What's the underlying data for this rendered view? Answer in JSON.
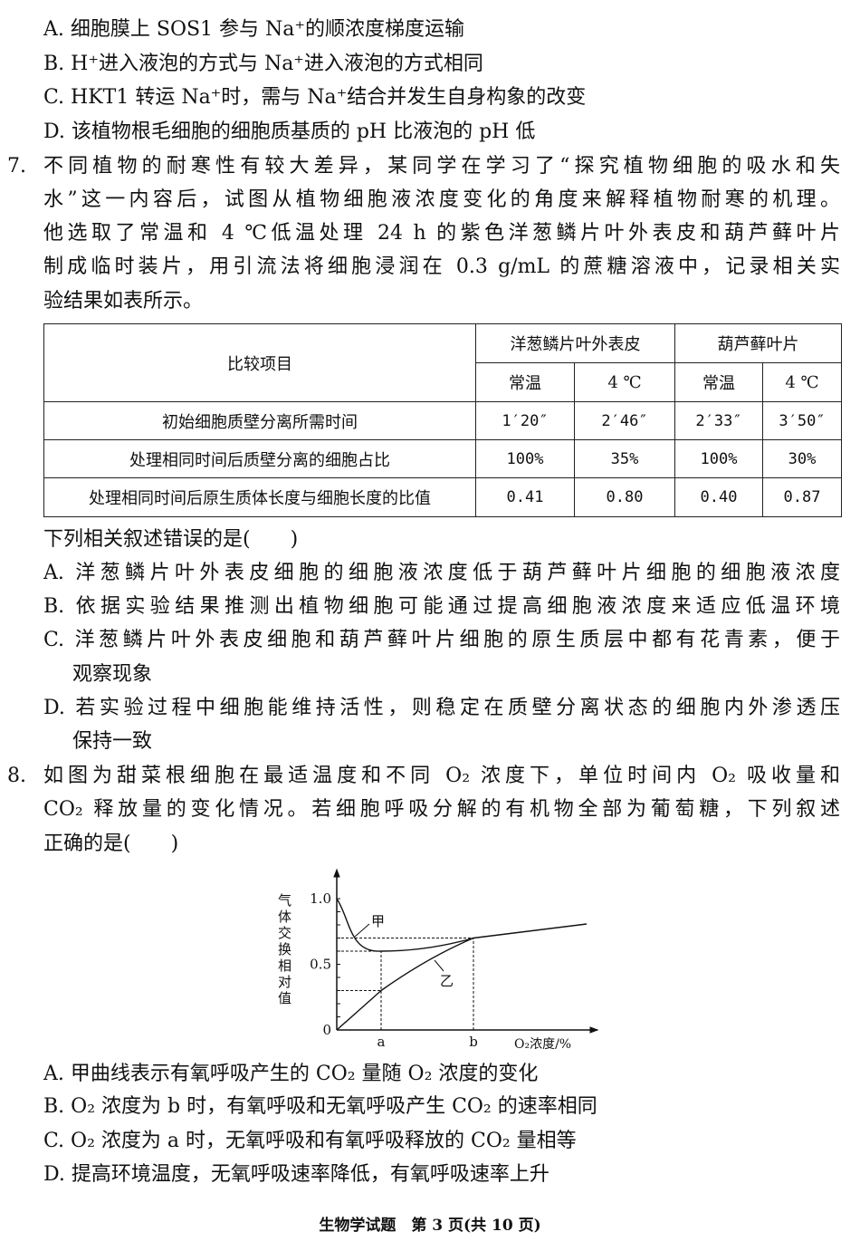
{
  "q6_options": [
    "A. 细胞膜上 SOS1 参与 Na⁺的顺浓度梯度运输",
    "B. H⁺进入液泡的方式与 Na⁺进入液泡的方式相同",
    "C. HKT1 转运 Na⁺时，需与 Na⁺结合并发生自身构象的改变",
    "D. 该植物根毛细胞的细胞质基质的 pH 比液泡的 pH 低"
  ],
  "q7": {
    "number": "7.",
    "stem": [
      "不同植物的耐寒性有较大差异，某同学在学习了“探究植物细胞的吸水和失",
      "水”这一内容后，试图从植物细胞液浓度变化的角度来解释植物耐寒的机理。",
      "他选取了常温和 4 ℃低温处理 24 h 的紫色洋葱鳞片叶外表皮和葫芦藓叶片",
      "制成临时装片，用引流法将细胞浸润在 0.3 g/mL 的蔗糖溶液中，记录相关实",
      "验结果如表所示。"
    ],
    "table": {
      "corner": "比较项目",
      "groups": [
        "洋葱鳞片叶外表皮",
        "葫芦藓叶片"
      ],
      "subheaders": [
        "常温",
        "4 ℃",
        "常温",
        "4 ℃"
      ],
      "rows": [
        {
          "label": "初始细胞质壁分离所需时间",
          "values": [
            "1′20″",
            "2′46″",
            "2′33″",
            "3′50″"
          ]
        },
        {
          "label": "处理相同时间后质壁分离的细胞占比",
          "values": [
            "100%",
            "35%",
            "100%",
            "30%"
          ]
        },
        {
          "label": "处理相同时间后原生质体长度与细胞长度的比值",
          "values": [
            "0.41",
            "0.80",
            "0.40",
            "0.87"
          ]
        }
      ]
    },
    "prompt": "下列相关叙述错误的是(　　)",
    "options": {
      "A": "A. 洋葱鳞片叶外表皮细胞的细胞液浓度低于葫芦藓叶片细胞的细胞液浓度",
      "B": "B. 依据实验结果推测出植物细胞可能通过提高细胞液浓度来适应低温环境",
      "C1": "C. 洋葱鳞片叶外表皮细胞和葫芦藓叶片细胞的原生质层中都有花青素，便于",
      "C2": "观察现象",
      "D1": "D. 若实验过程中细胞能维持活性，则稳定在质壁分离状态的细胞内外渗透压",
      "D2": "保持一致"
    }
  },
  "q8": {
    "number": "8.",
    "stem": [
      "如图为甜菜根细胞在最适温度和不同 O₂ 浓度下，单位时间内 O₂ 吸收量和",
      "CO₂ 释放量的变化情况。若细胞呼吸分解的有机物全部为葡萄糖，下列叙述",
      "正确的是(　　)"
    ],
    "options": [
      "A. 甲曲线表示有氧呼吸产生的 CO₂ 量随 O₂ 浓度的变化",
      "B. O₂ 浓度为 b 时，有氧呼吸和无氧呼吸产生 CO₂ 的速率相同",
      "C. O₂ 浓度为 a 时，无氧呼吸和有氧呼吸释放的 CO₂ 量相等",
      "D. 提高环境温度，无氧呼吸速率降低，有氧呼吸速率上升"
    ]
  },
  "chart_data": {
    "type": "line",
    "ylabel": "气体交换相对值",
    "xlabel": "O₂浓度/%",
    "y_ticks": [
      "0",
      "0.5",
      "1.0"
    ],
    "x_ticks": [
      "a",
      "b"
    ],
    "ylim": [
      0,
      1.0
    ],
    "grid": false,
    "series": [
      {
        "name": "甲",
        "points": [
          {
            "x": "0",
            "y": 1.0
          },
          {
            "x": "a",
            "y": 0.6
          },
          {
            "x": "b",
            "y": 0.7
          }
        ]
      },
      {
        "name": "乙",
        "points": [
          {
            "x": "0",
            "y": 0
          },
          {
            "x": "a",
            "y": 0.3
          },
          {
            "x": "b",
            "y": 0.7
          }
        ]
      }
    ]
  },
  "footer": "生物学试题　第 3 页(共 10 页)"
}
